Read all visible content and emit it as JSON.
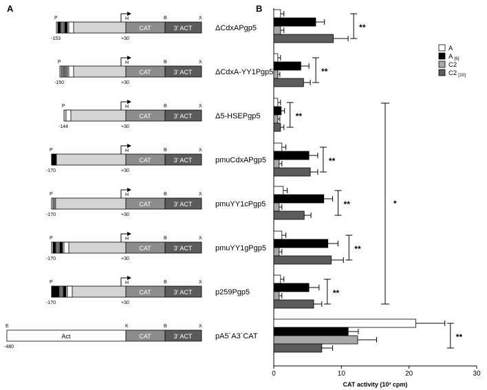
{
  "panels": {
    "a": "A",
    "b": "B"
  },
  "construct_labels": {
    "p": "P",
    "h": "H",
    "b": "B",
    "x": "X",
    "e": "E",
    "k": "K",
    "cat": "CAT",
    "act3": "3' ACT",
    "act": "Act",
    "plus30": "+30"
  },
  "constructs": [
    {
      "name": "ΔCdxAPgp5",
      "start": "-153",
      "kind": "short",
      "marks": [
        "k",
        "g",
        "k"
      ],
      "black_prefix": false,
      "open_box": true
    },
    {
      "name": "ΔCdxA-YY1Pgp5",
      "start": "-150",
      "kind": "short",
      "marks": [
        "g",
        "g"
      ],
      "black_prefix": false,
      "open_box": true
    },
    {
      "name": "Δ5-HSEPgp5",
      "start": "-144",
      "kind": "short",
      "marks": [],
      "black_prefix": false,
      "open_box": true
    },
    {
      "name": "pmuCdxAPgp5",
      "start": "-170",
      "kind": "long",
      "marks": [],
      "black_prefix": true,
      "open_box": false
    },
    {
      "name": "pmuYY1cPgp5",
      "start": "-170",
      "kind": "long",
      "marks": [
        "g"
      ],
      "black_prefix": false,
      "open_box": false
    },
    {
      "name": "pmuYY1gPgp5",
      "start": "-170",
      "kind": "long",
      "marks": [
        "k",
        "g",
        "k"
      ],
      "black_prefix": false,
      "open_box": true
    },
    {
      "name": "p259Pgp5",
      "start": "-170",
      "kind": "long",
      "marks": [
        "k",
        "g",
        "k"
      ],
      "black_prefix": true,
      "open_box": true
    },
    {
      "name": "pA5´A3´CAT",
      "start": "-480",
      "kind": "actin",
      "marks": [],
      "black_prefix": false,
      "open_box": false
    }
  ],
  "legend": [
    {
      "label": "A",
      "sub": "",
      "color": "#ffffff"
    },
    {
      "label": "A",
      "sub": "[6]",
      "color": "#000000"
    },
    {
      "label": "C2",
      "sub": "",
      "color": "#a8a8a8"
    },
    {
      "label": "C2",
      "sub": "[20]",
      "color": "#5c5c5c"
    }
  ],
  "colors": {
    "A": "#ffffff",
    "A_6": "#000000",
    "C2": "#a8a8a8",
    "C2_20": "#5c5c5c",
    "promoter": "#d4d4d4",
    "reporter": "#8c8c8c"
  },
  "chart_data": {
    "type": "bar",
    "orientation": "horizontal",
    "categories": [
      "ΔCdxAPgp5",
      "ΔCdxA-YY1Pgp5",
      "Δ5-HSEPgp5",
      "pmuCdxAPgp5",
      "pmuYY1cPgp5",
      "pmuYY1gPgp5",
      "p259Pgp5",
      "pA5´A3´CAT"
    ],
    "series": [
      {
        "name": "A",
        "values": [
          1.0,
          0.6,
          0.6,
          1.2,
          1.4,
          1.2,
          1.0,
          21.0
        ],
        "errors": [
          0.5,
          0.4,
          0.4,
          0.6,
          0.6,
          0.6,
          0.5,
          4.3
        ]
      },
      {
        "name": "A[6]",
        "values": [
          6.2,
          4.0,
          1.1,
          5.2,
          7.4,
          8.0,
          5.2,
          11.0
        ],
        "errors": [
          1.3,
          1.2,
          0.5,
          1.3,
          1.3,
          1.5,
          1.5,
          1.5
        ]
      },
      {
        "name": "C2",
        "values": [
          1.0,
          0.6,
          0.6,
          0.8,
          0.8,
          0.8,
          0.8,
          12.4
        ],
        "errors": [
          0.5,
          0.3,
          0.3,
          0.4,
          0.4,
          0.4,
          0.4,
          2.8
        ]
      },
      {
        "name": "C2[20]",
        "values": [
          8.8,
          4.4,
          1.0,
          5.4,
          4.5,
          8.5,
          5.9,
          7.1
        ],
        "errors": [
          2.2,
          1.0,
          0.5,
          1.1,
          1.0,
          1.8,
          1.2,
          1.6
        ]
      }
    ],
    "significance": [
      "**",
      "**",
      "**",
      "**",
      "**",
      "**",
      "**",
      "**"
    ],
    "overall_significance": "*",
    "xlabel": "CAT activity (10³ cpm)",
    "xlim": [
      0,
      30
    ],
    "xticks": [
      "0",
      "10",
      "20",
      "30"
    ]
  }
}
